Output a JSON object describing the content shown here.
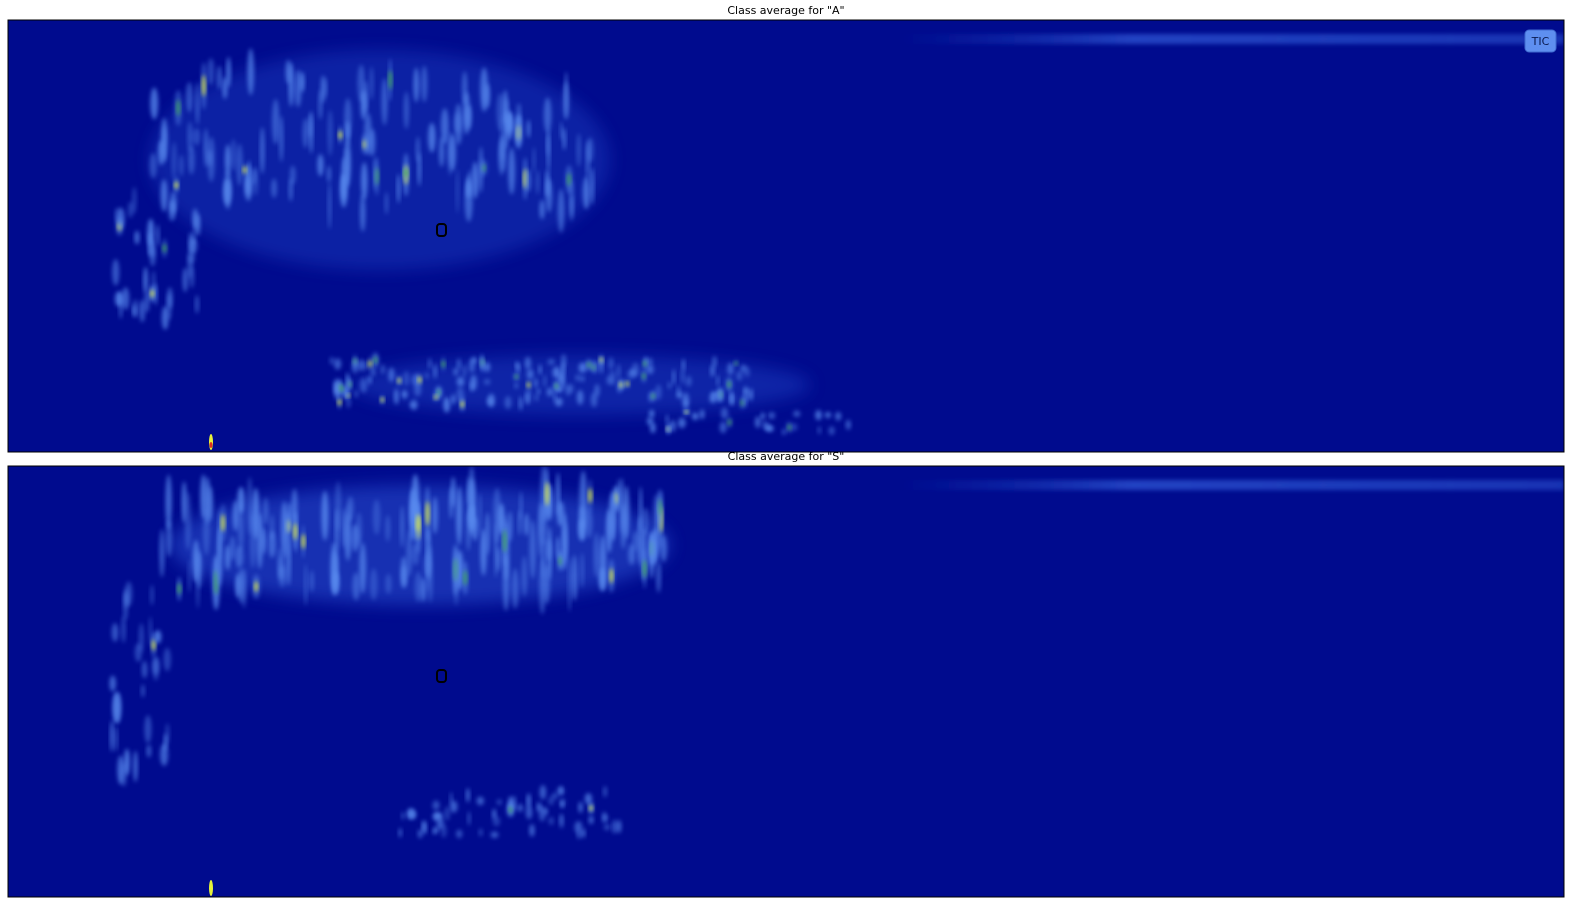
{
  "panels": [
    {
      "title": "Class average for \"A\""
    },
    {
      "title": "Class average for \"S\""
    }
  ],
  "tic_button": {
    "label": "TIC"
  }
}
